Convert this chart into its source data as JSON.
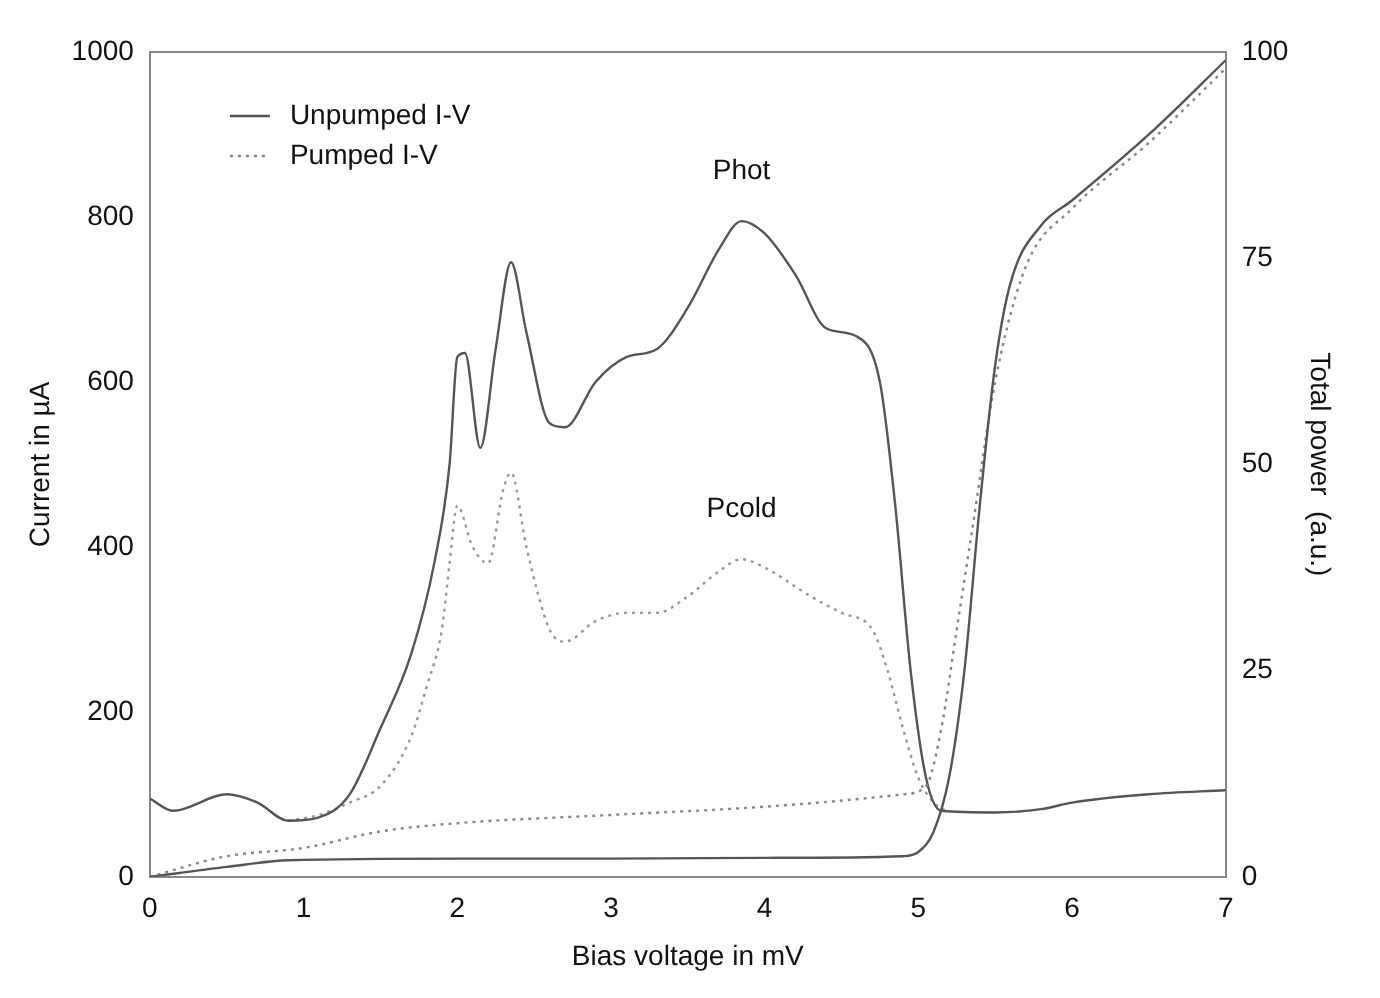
{
  "chart_data": {
    "type": "line",
    "xlabel": "Bias voltage in mV",
    "ylabel": "Current in µA",
    "y2label": "Total power  (a.u.)",
    "xlim": [
      0,
      7
    ],
    "xticks": [
      0,
      1,
      2,
      3,
      4,
      5,
      6,
      7
    ],
    "ylim": [
      0,
      1000
    ],
    "yticks": [
      0,
      200,
      400,
      600,
      800,
      1000
    ],
    "y2lim": [
      0,
      100
    ],
    "y2ticks": [
      0,
      25,
      50,
      75,
      100
    ],
    "grid": false,
    "legend": "top left",
    "marker": "none",
    "series": [
      {
        "name": "Unpumped I-V",
        "color": "#555555",
        "line_style": "solid",
        "x": [
          0,
          0.5,
          0.9,
          2,
          3,
          4,
          4.9,
          5.0,
          5.1,
          5.2,
          5.3,
          5.4,
          5.5,
          5.6,
          5.8,
          6.0,
          6.5,
          7.0
        ],
        "values": [
          0,
          12,
          20,
          22,
          22,
          23,
          25,
          30,
          55,
          120,
          250,
          450,
          620,
          720,
          790,
          820,
          900,
          990
        ]
      },
      {
        "name": "Pumped I-V",
        "color": "#888888",
        "line_style": "dotted",
        "x": [
          0,
          0.5,
          1.0,
          1.5,
          2.0,
          3.0,
          4.0,
          4.9,
          5.05,
          5.15,
          5.25,
          5.35,
          5.5,
          5.7,
          6.0,
          6.5,
          7.0
        ],
        "values": [
          0,
          25,
          35,
          55,
          65,
          75,
          85,
          100,
          110,
          180,
          300,
          420,
          600,
          740,
          810,
          890,
          980
        ]
      },
      {
        "axis": "y2",
        "name": "Phot",
        "color": "#555555",
        "line_style": "solid",
        "x": [
          0,
          0.15,
          0.5,
          0.7,
          0.9,
          1.1,
          1.3,
          1.5,
          1.7,
          1.85,
          1.95,
          2.0,
          2.05,
          2.15,
          2.25,
          2.35,
          2.45,
          2.6,
          2.7,
          2.9,
          3.1,
          3.3,
          3.5,
          3.7,
          3.85,
          4.0,
          4.2,
          4.4,
          4.6,
          4.75,
          4.85,
          4.95,
          5.05,
          5.15,
          5.5,
          5.8,
          6.0,
          6.5,
          7.0
        ],
        "values": [
          9.5,
          8,
          10,
          9,
          6.8,
          7.2,
          10,
          18,
          27,
          38,
          50,
          63,
          63.5,
          52,
          64,
          74.5,
          66,
          55,
          54.5,
          60,
          63,
          64,
          69,
          76,
          79.5,
          78,
          73,
          66.5,
          65.5,
          60,
          45,
          25,
          12,
          8,
          7.8,
          8.2,
          9,
          10,
          10.5
        ]
      },
      {
        "axis": "y2",
        "name": "Pcold",
        "color": "#999999",
        "line_style": "dotted",
        "x": [
          0.9,
          1.1,
          1.3,
          1.5,
          1.7,
          1.8,
          1.9,
          1.95,
          2.0,
          2.1,
          2.2,
          2.3,
          2.35,
          2.45,
          2.6,
          2.7,
          2.9,
          3.1,
          3.3,
          3.5,
          3.7,
          3.85,
          4.0,
          4.3,
          4.5,
          4.7,
          4.8,
          4.9,
          5.0,
          5.1,
          5.2
        ],
        "values": [
          6.8,
          7.5,
          9,
          11,
          17,
          23,
          30,
          38,
          45,
          40,
          38,
          47,
          49,
          40,
          30,
          28.5,
          31,
          32,
          32,
          34,
          37,
          38.5,
          37.5,
          34,
          32,
          30,
          25,
          18,
          12,
          9,
          7.8
        ]
      }
    ]
  }
}
